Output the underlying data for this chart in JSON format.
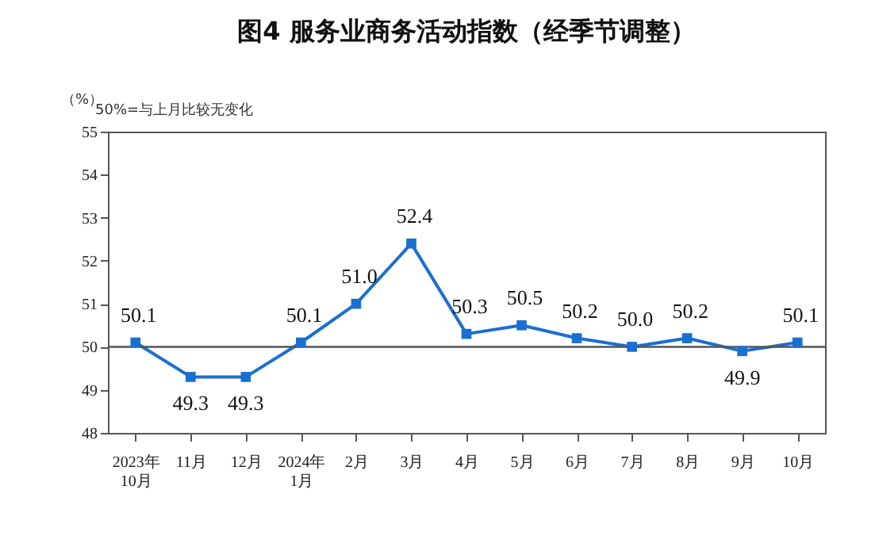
{
  "chart_data": {
    "type": "line",
    "title": "图4  服务业商务活动指数（经季节调整）",
    "ylabel": "（%）",
    "annotations": [
      "50%=与上月比较无变化"
    ],
    "categories": [
      "2023年\n10月",
      "11月",
      "12月",
      "2024年\n1月",
      "2月",
      "3月",
      "4月",
      "5月",
      "6月",
      "7月",
      "8月",
      "9月",
      "10月"
    ],
    "series": [
      {
        "color": "#1a6fd0",
        "values": [
          50.1,
          49.3,
          49.3,
          50.1,
          51.0,
          52.4,
          50.3,
          50.5,
          50.2,
          50.0,
          50.2,
          49.9,
          50.1
        ]
      }
    ],
    "value_labels": [
      "50.1",
      "49.3",
      "49.3",
      "50.1",
      "51.0",
      "52.4",
      "50.3",
      "50.5",
      "50.2",
      "50.0",
      "50.2",
      "49.9",
      "50.1"
    ],
    "ylim": [
      48,
      55
    ],
    "yticks": [
      48,
      49,
      50,
      51,
      52,
      53,
      54,
      55
    ],
    "ref_lines": [
      {
        "axis": "y",
        "value": 50,
        "color": "#555555"
      }
    ],
    "marker": "square"
  }
}
